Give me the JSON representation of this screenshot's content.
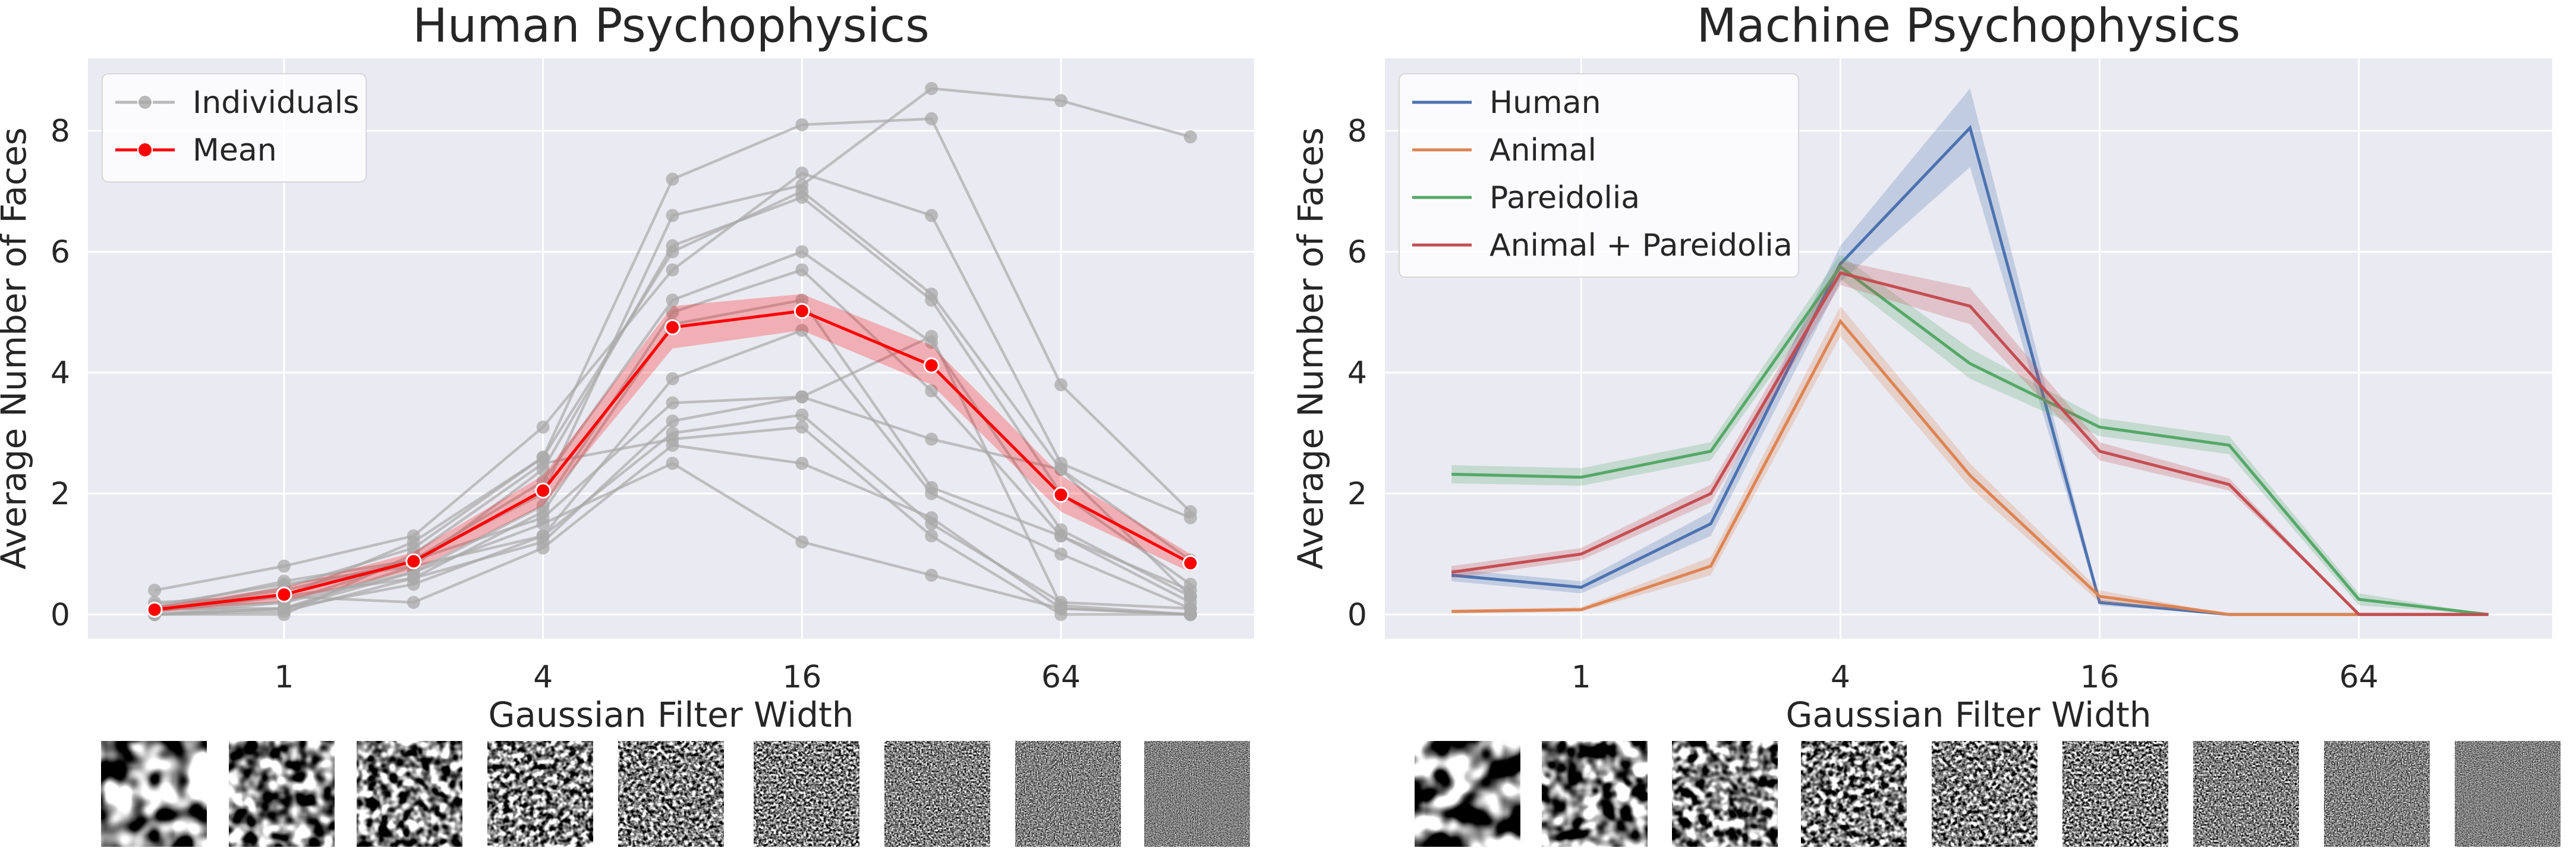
{
  "chart_data": [
    {
      "type": "line",
      "title": "Human Psychophysics",
      "xlabel": "Gaussian Filter Width",
      "ylabel": "Average Number of Faces",
      "x_scale": "log2",
      "x": [
        0.5,
        1,
        2,
        4,
        8,
        16,
        32,
        64,
        128
      ],
      "x_ticks": [
        1,
        4,
        16,
        64
      ],
      "x_tick_labels": [
        "1",
        "4",
        "16",
        "64"
      ],
      "xlim": [
        0.35,
        180
      ],
      "ylim": [
        -0.4,
        9.2
      ],
      "y_ticks": [
        0,
        2,
        4,
        6,
        8
      ],
      "y_tick_labels": [
        "0",
        "2",
        "4",
        "6",
        "8"
      ],
      "grid": true,
      "legend": "top-left",
      "legend_entries": [
        "Individuals",
        "Mean"
      ],
      "individuals_color": "#a9a9a9",
      "individuals": [
        [
          0.1,
          0.55,
          0.9,
          2.0,
          6.6,
          7.1,
          8.7,
          8.5,
          7.9
        ],
        [
          0.05,
          0.45,
          1.1,
          2.6,
          7.2,
          8.1,
          8.2,
          3.8,
          1.7
        ],
        [
          0.4,
          0.8,
          1.3,
          3.1,
          5.7,
          7.3,
          6.6,
          2.5,
          1.6
        ],
        [
          0.2,
          0.3,
          1.2,
          2.6,
          6.0,
          7.0,
          5.3,
          2.4,
          0.9
        ],
        [
          0.15,
          0.5,
          0.8,
          2.4,
          6.1,
          6.9,
          5.2,
          2.0,
          0.5
        ],
        [
          0.1,
          0.4,
          0.9,
          2.2,
          5.2,
          6.0,
          4.5,
          1.4,
          0.3
        ],
        [
          0.0,
          0.2,
          0.7,
          1.8,
          5.0,
          5.7,
          3.7,
          1.3,
          0.4
        ],
        [
          0.05,
          0.3,
          0.6,
          1.7,
          4.8,
          5.2,
          2.1,
          1.3,
          0.2
        ],
        [
          0.0,
          0.1,
          0.5,
          1.3,
          3.9,
          4.7,
          2.0,
          1.0,
          0.1
        ],
        [
          0.1,
          0.2,
          0.9,
          1.6,
          3.5,
          3.6,
          2.9,
          2.4,
          0.3
        ],
        [
          0.0,
          0.05,
          0.6,
          1.2,
          3.2,
          3.6,
          4.6,
          0.15,
          0.0
        ],
        [
          0.1,
          0.1,
          0.8,
          1.3,
          3.0,
          3.3,
          1.5,
          0.2,
          0.1
        ],
        [
          0.0,
          0.0,
          1.0,
          2.5,
          2.9,
          3.1,
          1.3,
          0.0,
          0.0
        ],
        [
          0.05,
          0.3,
          0.2,
          1.1,
          2.8,
          2.5,
          1.6,
          0.1,
          0.0
        ],
        [
          0.0,
          0.1,
          0.7,
          1.5,
          2.5,
          1.2,
          0.65,
          0.1,
          0.0
        ]
      ],
      "series": [
        {
          "name": "Mean",
          "color": "#ff0000",
          "values": [
            0.08,
            0.33,
            0.88,
            2.05,
            4.75,
            5.02,
            4.12,
            1.98,
            0.85
          ],
          "ci_lower": [
            0.03,
            0.22,
            0.73,
            1.8,
            4.4,
            4.7,
            3.8,
            1.7,
            0.7
          ],
          "ci_upper": [
            0.14,
            0.45,
            1.03,
            2.3,
            5.1,
            5.3,
            4.45,
            2.3,
            1.0
          ]
        }
      ]
    },
    {
      "type": "line",
      "title": "Machine Psychophysics",
      "xlabel": "Gaussian Filter Width",
      "ylabel": "Average Number of Faces",
      "x_scale": "log2",
      "x": [
        0.5,
        1,
        2,
        4,
        8,
        16,
        32,
        64,
        128
      ],
      "x_ticks": [
        1,
        4,
        16,
        64
      ],
      "x_tick_labels": [
        "1",
        "4",
        "16",
        "64"
      ],
      "xlim": [
        0.35,
        180
      ],
      "ylim": [
        -0.4,
        9.2
      ],
      "y_ticks": [
        0,
        2,
        4,
        6,
        8
      ],
      "y_tick_labels": [
        "0",
        "2",
        "4",
        "6",
        "8"
      ],
      "grid": true,
      "legend": "top-left",
      "series": [
        {
          "name": "Human",
          "color": "#4c72b0",
          "values": [
            0.65,
            0.45,
            1.5,
            5.8,
            8.05,
            0.2,
            0.0,
            0.0,
            0.0
          ],
          "ci_lower": [
            0.55,
            0.35,
            1.3,
            5.5,
            7.4,
            0.15,
            0.0,
            0.0,
            0.0
          ],
          "ci_upper": [
            0.75,
            0.55,
            1.7,
            6.1,
            8.7,
            0.25,
            0.0,
            0.0,
            0.0
          ]
        },
        {
          "name": "Animal",
          "color": "#dd8452",
          "values": [
            0.05,
            0.08,
            0.8,
            4.85,
            2.3,
            0.3,
            0.0,
            0.0,
            0.0
          ],
          "ci_lower": [
            0.02,
            0.05,
            0.65,
            4.6,
            2.1,
            0.2,
            0.0,
            0.0,
            0.0
          ],
          "ci_upper": [
            0.08,
            0.12,
            0.95,
            5.1,
            2.5,
            0.4,
            0.0,
            0.0,
            0.0
          ]
        },
        {
          "name": "Pareidolia",
          "color": "#55a868",
          "values": [
            2.32,
            2.27,
            2.7,
            5.75,
            4.15,
            3.1,
            2.8,
            0.25,
            0.0
          ],
          "ci_lower": [
            2.17,
            2.13,
            2.55,
            5.55,
            3.9,
            2.95,
            2.65,
            0.15,
            0.0
          ],
          "ci_upper": [
            2.47,
            2.42,
            2.85,
            5.95,
            4.4,
            3.25,
            2.95,
            0.35,
            0.0
          ]
        },
        {
          "name": "Animal + Pareidolia",
          "color": "#c44e52",
          "values": [
            0.7,
            1.0,
            2.0,
            5.65,
            5.1,
            2.7,
            2.15,
            0.0,
            0.0
          ],
          "ci_lower": [
            0.6,
            0.9,
            1.85,
            5.45,
            4.8,
            2.55,
            2.05,
            0.0,
            0.0
          ],
          "ci_upper": [
            0.8,
            1.1,
            2.15,
            5.85,
            5.4,
            2.85,
            2.25,
            0.0,
            0.0
          ]
        }
      ]
    }
  ]
}
